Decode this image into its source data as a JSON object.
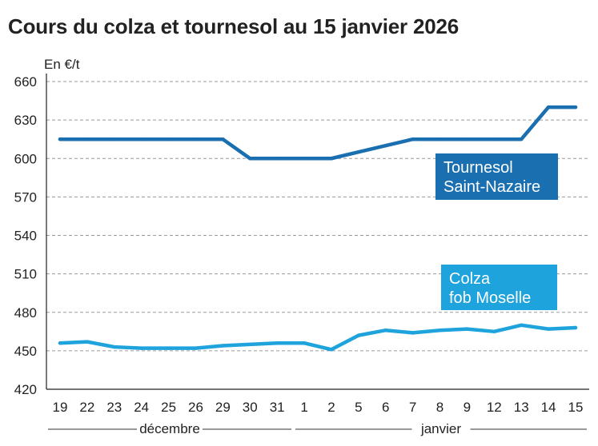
{
  "title": "Cours du colza et tournesol au 15 janvier 2026",
  "chart_data": {
    "type": "line",
    "title": "Cours du colza et tournesol au 15 janvier 2026",
    "ylabel": "En €/t",
    "xlabel": "",
    "ylim": [
      420,
      660
    ],
    "yticks": [
      420,
      450,
      480,
      510,
      540,
      570,
      600,
      630,
      660
    ],
    "grid": true,
    "categories": [
      "19",
      "22",
      "23",
      "24",
      "25",
      "26",
      "29",
      "30",
      "31",
      "1",
      "2",
      "5",
      "6",
      "7",
      "8",
      "9",
      "12",
      "13",
      "14",
      "15"
    ],
    "month_labels": [
      "décembre",
      "janvier"
    ],
    "series": [
      {
        "name": "Tournesol Saint-Nazaire",
        "label_lines": [
          "Tournesol",
          "Saint-Nazaire"
        ],
        "color": "#1a6fb0",
        "values": [
          615,
          615,
          615,
          615,
          615,
          615,
          615,
          600,
          600,
          600,
          600,
          605,
          610,
          615,
          615,
          615,
          615,
          615,
          640,
          640
        ]
      },
      {
        "name": "Colza fob Moselle",
        "label_lines": [
          "Colza",
          "fob Moselle"
        ],
        "color": "#1ea3dc",
        "values": [
          456,
          457,
          453,
          452,
          452,
          452,
          454,
          455,
          456,
          456,
          451,
          462,
          466,
          464,
          466,
          467,
          465,
          470,
          467,
          468
        ]
      }
    ]
  }
}
